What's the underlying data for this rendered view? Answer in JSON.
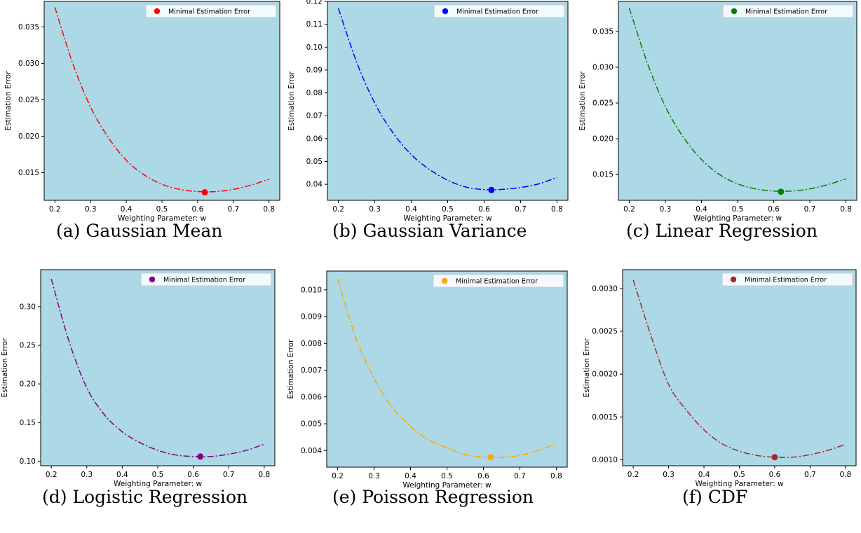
{
  "chart_data": [
    {
      "type": "line",
      "caption": "(a) Gaussian Mean",
      "xlabel": "Weighting Parameter: w",
      "ylabel": "Estimation Error",
      "legend": "Minimal Estimation Error",
      "legend_position": "top-right",
      "color": "#ff0000",
      "marker_color": "#ff0000",
      "background": "#add8e6",
      "xlim": [
        0.17,
        0.83
      ],
      "ylim": [
        0.0112,
        0.0385
      ],
      "xticks": [
        0.2,
        0.3,
        0.4,
        0.5,
        0.6,
        0.7,
        0.8
      ],
      "yticks": [
        0.015,
        0.02,
        0.025,
        0.03,
        0.035
      ],
      "ytick_labels": [
        "0.015",
        "0.020",
        "0.025",
        "0.030",
        "0.035"
      ],
      "x": [
        0.2,
        0.25,
        0.3,
        0.35,
        0.4,
        0.45,
        0.5,
        0.55,
        0.6,
        0.65,
        0.7,
        0.75,
        0.8
      ],
      "y": [
        0.0377,
        0.03,
        0.024,
        0.0198,
        0.0167,
        0.0147,
        0.0134,
        0.0127,
        0.0124,
        0.0124,
        0.0127,
        0.0133,
        0.0141
      ],
      "minimum": {
        "x": 0.62,
        "y": 0.0123
      }
    },
    {
      "type": "line",
      "caption": "(b) Gaussian Variance",
      "xlabel": "Weighting Parameter: w",
      "ylabel": "Estimation Error",
      "legend": "Minimal Estimation Error",
      "legend_position": "top-right",
      "color": "#0000ff",
      "marker_color": "#0000ff",
      "background": "#add8e6",
      "xlim": [
        0.17,
        0.83
      ],
      "ylim": [
        0.033,
        0.12
      ],
      "xticks": [
        0.2,
        0.3,
        0.4,
        0.5,
        0.6,
        0.7,
        0.8
      ],
      "yticks": [
        0.04,
        0.05,
        0.06,
        0.07,
        0.08,
        0.09,
        0.1,
        0.11,
        0.12
      ],
      "ytick_labels": [
        "0.04",
        "0.05",
        "0.06",
        "0.07",
        "0.08",
        "0.09",
        "0.10",
        "0.11",
        "0.12"
      ],
      "x": [
        0.2,
        0.25,
        0.3,
        0.35,
        0.4,
        0.45,
        0.5,
        0.55,
        0.6,
        0.65,
        0.7,
        0.75,
        0.8
      ],
      "y": [
        0.117,
        0.0935,
        0.0755,
        0.0625,
        0.053,
        0.0465,
        0.0418,
        0.0388,
        0.0377,
        0.0378,
        0.0386,
        0.0402,
        0.043
      ],
      "minimum": {
        "x": 0.62,
        "y": 0.0375
      }
    },
    {
      "type": "line",
      "caption": "(c) Linear Regression",
      "xlabel": "Weighting Parameter: w",
      "ylabel": "Estimation Error",
      "legend": "Minimal Estimation Error",
      "legend_position": "top-right",
      "color": "#008000",
      "marker_color": "#008000",
      "background": "#add8e6",
      "xlim": [
        0.17,
        0.83
      ],
      "ylim": [
        0.0114,
        0.0392
      ],
      "xticks": [
        0.2,
        0.3,
        0.4,
        0.5,
        0.6,
        0.7,
        0.8
      ],
      "yticks": [
        0.015,
        0.02,
        0.025,
        0.03,
        0.035
      ],
      "ytick_labels": [
        "0.015",
        "0.020",
        "0.025",
        "0.030",
        "0.035"
      ],
      "x": [
        0.2,
        0.25,
        0.3,
        0.35,
        0.4,
        0.45,
        0.5,
        0.55,
        0.6,
        0.65,
        0.7,
        0.75,
        0.8
      ],
      "y": [
        0.0383,
        0.0306,
        0.0245,
        0.0202,
        0.0171,
        0.015,
        0.0137,
        0.013,
        0.0127,
        0.0127,
        0.013,
        0.0136,
        0.0144
      ],
      "minimum": {
        "x": 0.62,
        "y": 0.0126
      }
    },
    {
      "type": "line",
      "caption": "(d) Logistic Regression",
      "xlabel": "Weighting Parameter: w",
      "ylabel": "Estimation Error",
      "legend": "Minimal Estimation Error",
      "legend_position": "top-right",
      "color": "#800080",
      "marker_color": "#800080",
      "background": "#add8e6",
      "xlim": [
        0.17,
        0.83
      ],
      "ylim": [
        0.094,
        0.348
      ],
      "xticks": [
        0.2,
        0.3,
        0.4,
        0.5,
        0.6,
        0.7,
        0.8
      ],
      "yticks": [
        0.1,
        0.15,
        0.2,
        0.25,
        0.3
      ],
      "ytick_labels": [
        "0.10",
        "0.15",
        "0.20",
        "0.25",
        "0.30"
      ],
      "x": [
        0.2,
        0.25,
        0.3,
        0.35,
        0.4,
        0.45,
        0.5,
        0.55,
        0.6,
        0.65,
        0.7,
        0.75,
        0.8
      ],
      "y": [
        0.336,
        0.255,
        0.195,
        0.16,
        0.138,
        0.124,
        0.114,
        0.108,
        0.106,
        0.106,
        0.109,
        0.114,
        0.122
      ],
      "minimum": {
        "x": 0.62,
        "y": 0.106
      }
    },
    {
      "type": "line",
      "caption": "(e) Poisson Regression",
      "xlabel": "Weighting Parameter: w",
      "ylabel": "Estimation Error",
      "legend": "Minimal Estimation Error",
      "legend_position": "top-right",
      "color": "#ffa500",
      "marker_color": "#ffa500",
      "background": "#add8e6",
      "xlim": [
        0.17,
        0.83
      ],
      "ylim": [
        0.00338,
        0.0107
      ],
      "xticks": [
        0.2,
        0.3,
        0.4,
        0.5,
        0.6,
        0.7,
        0.8
      ],
      "yticks": [
        0.004,
        0.005,
        0.006,
        0.007,
        0.008,
        0.009,
        0.01
      ],
      "ytick_labels": [
        "0.004",
        "0.005",
        "0.006",
        "0.007",
        "0.008",
        "0.009",
        "0.010"
      ],
      "x": [
        0.2,
        0.25,
        0.3,
        0.35,
        0.4,
        0.45,
        0.5,
        0.55,
        0.6,
        0.65,
        0.7,
        0.75,
        0.8
      ],
      "y": [
        0.0104,
        0.0082,
        0.0067,
        0.0056,
        0.0049,
        0.0044,
        0.0041,
        0.00385,
        0.00375,
        0.00375,
        0.00382,
        0.004,
        0.00425
      ],
      "minimum": {
        "x": 0.62,
        "y": 0.00375
      }
    },
    {
      "type": "line",
      "caption": "(f) CDF",
      "xlabel": "Weighting Parameter: w",
      "ylabel": "Estimation Error",
      "legend": "Minimal Estimation Error",
      "legend_position": "top-right",
      "color": "#a52a2a",
      "marker_color": "#a52a2a",
      "background": "#add8e6",
      "xlim": [
        0.17,
        0.83
      ],
      "ylim": [
        0.00093,
        0.00322
      ],
      "xticks": [
        0.2,
        0.3,
        0.4,
        0.5,
        0.6,
        0.7,
        0.8
      ],
      "yticks": [
        0.001,
        0.0015,
        0.002,
        0.0025,
        0.003
      ],
      "ytick_labels": [
        "0.0010",
        "0.0015",
        "0.0020",
        "0.0025",
        "0.0030"
      ],
      "x": [
        0.2,
        0.25,
        0.3,
        0.35,
        0.4,
        0.45,
        0.5,
        0.55,
        0.6,
        0.65,
        0.7,
        0.75,
        0.8
      ],
      "y": [
        0.0031,
        0.00245,
        0.00188,
        0.00158,
        0.00135,
        0.00119,
        0.0011,
        0.00105,
        0.00103,
        0.00103,
        0.00106,
        0.00111,
        0.00118
      ],
      "minimum": {
        "x": 0.6,
        "y": 0.00103
      }
    }
  ]
}
